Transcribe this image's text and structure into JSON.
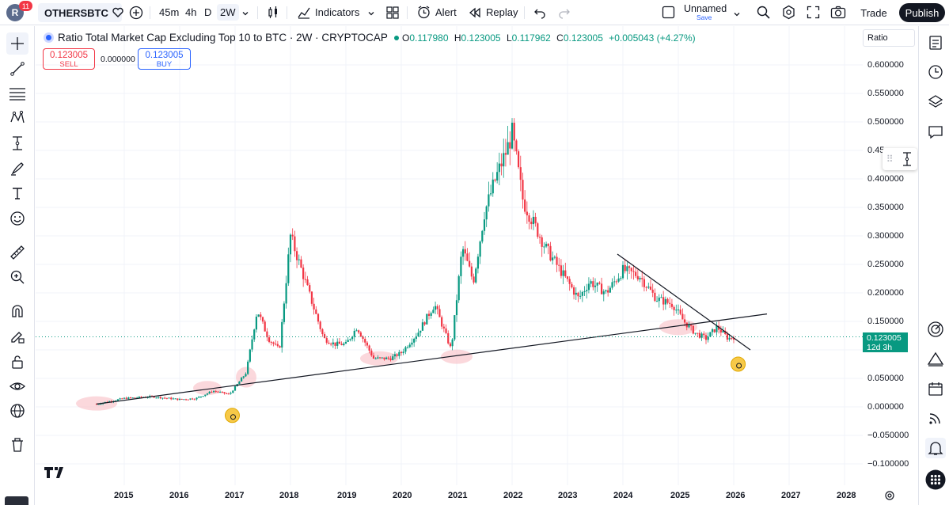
{
  "topbar": {
    "avatar_letter": "R",
    "notification_count": "11",
    "symbol": "OTHERSBTC",
    "intervals": [
      "45m",
      "4h",
      "D",
      "2W"
    ],
    "active_interval": "2W",
    "indicators_label": "Indicators",
    "alert_label": "Alert",
    "replay_label": "Replay",
    "layout_name": "Unnamed",
    "layout_save": "Save",
    "trade_label": "Trade",
    "publish_label": "Publish"
  },
  "legend": {
    "title": "Ratio Total Market Cap Excluding Top 10 to BTC · 2W · CRYPTOCAP",
    "ohlc": [
      {
        "key": "O",
        "value": "0.117980"
      },
      {
        "key": "H",
        "value": "0.123005"
      },
      {
        "key": "L",
        "value": "0.117962"
      },
      {
        "key": "C",
        "value": "0.123005"
      }
    ],
    "change": "+0.005043 (+4.27%)"
  },
  "trade_panel": {
    "sell_price": "0.123005",
    "sell_label": "SELL",
    "spread": "0.000000",
    "buy_price": "0.123005",
    "buy_label": "BUY"
  },
  "price_scale": {
    "label": "Ratio",
    "ticks": [
      "0.600000",
      "0.550000",
      "0.500000",
      "0.45",
      "0.400000",
      "0.350000",
      "0.300000",
      "0.250000",
      "0.200000",
      "0.150000",
      "0.050000",
      "0.000000",
      "−0.050000",
      "−0.100000"
    ],
    "last_price": "0.123005",
    "countdown": "12d 3h"
  },
  "time_scale": {
    "ticks": [
      "2015",
      "2016",
      "2017",
      "2018",
      "2019",
      "2020",
      "2021",
      "2022",
      "2023",
      "2024",
      "2025",
      "2026",
      "2027",
      "2028"
    ]
  },
  "colors": {
    "up": "#089981",
    "down": "#f23645",
    "highlight": "#f7b8c0",
    "trendline": "#131722",
    "accent": "#2962ff"
  },
  "chart_data": {
    "type": "candlestick",
    "title": "Ratio Total Market Cap Excluding Top 10 to BTC · 2W · CRYPTOCAP",
    "ylim": [
      -0.11,
      0.63
    ],
    "xlim": [
      2014.0,
      2028.4
    ],
    "x": [
      2014.5,
      2015.0,
      2015.5,
      2016.0,
      2016.3,
      2016.6,
      2016.9,
      2017.2,
      2017.4,
      2017.6,
      2017.8,
      2018.0,
      2018.2,
      2018.4,
      2018.6,
      2018.8,
      2019.0,
      2019.2,
      2019.5,
      2019.8,
      2020.0,
      2020.3,
      2020.6,
      2020.9,
      2021.1,
      2021.3,
      2021.5,
      2021.7,
      2021.9,
      2022.0,
      2022.2,
      2022.4,
      2022.6,
      2022.8,
      2023.0,
      2023.2,
      2023.4,
      2023.7,
      2024.0,
      2024.3,
      2024.6,
      2024.9,
      2025.1,
      2025.3,
      2025.5,
      2025.7,
      2025.9,
      2026.0
    ],
    "values": [
      0.005,
      0.015,
      0.018,
      0.013,
      0.015,
      0.028,
      0.022,
      0.06,
      0.17,
      0.12,
      0.1,
      0.3,
      0.24,
      0.18,
      0.12,
      0.11,
      0.11,
      0.14,
      0.085,
      0.085,
      0.095,
      0.13,
      0.18,
      0.1,
      0.28,
      0.22,
      0.34,
      0.4,
      0.45,
      0.48,
      0.36,
      0.32,
      0.28,
      0.25,
      0.22,
      0.19,
      0.22,
      0.2,
      0.24,
      0.23,
      0.19,
      0.18,
      0.15,
      0.13,
      0.12,
      0.14,
      0.12,
      0.123
    ],
    "trendlines": [
      {
        "from": [
          2014.5,
          0.005
        ],
        "to": [
          2026.6,
          0.163
        ]
      },
      {
        "from": [
          2023.9,
          0.268
        ],
        "to": [
          2026.3,
          0.1
        ]
      }
    ]
  }
}
